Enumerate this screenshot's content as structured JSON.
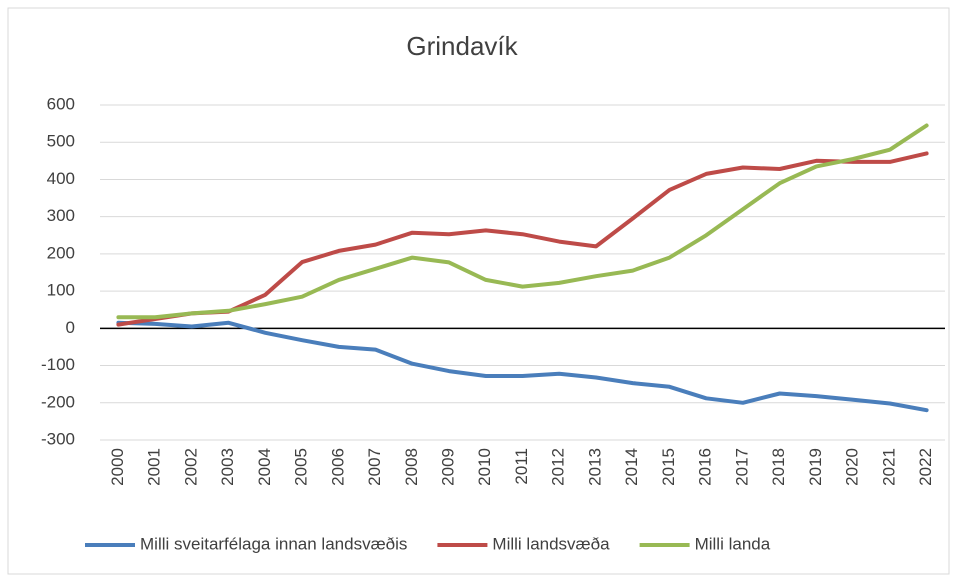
{
  "chart_data": {
    "type": "line",
    "title": "Grindavík",
    "categories": [
      "2000",
      "2001",
      "2002",
      "2003",
      "2004",
      "2005",
      "2006",
      "2007",
      "2008",
      "2009",
      "2010",
      "2011",
      "2012",
      "2013",
      "2014",
      "2015",
      "2016",
      "2017",
      "2018",
      "2019",
      "2020",
      "2021",
      "2022"
    ],
    "series": [
      {
        "name": "Milli sveitarfélaga innan landsvæðis",
        "color": "#4a7ebb",
        "values": [
          15,
          12,
          5,
          15,
          -12,
          -32,
          -50,
          -57,
          -95,
          -115,
          -128,
          -128,
          -122,
          -132,
          -147,
          -157,
          -188,
          -200,
          -175,
          -182,
          -192,
          -202,
          -220
        ]
      },
      {
        "name": "Milli landsvæða",
        "color": "#be4b48",
        "values": [
          10,
          25,
          40,
          45,
          90,
          178,
          208,
          225,
          257,
          253,
          263,
          253,
          233,
          220,
          295,
          372,
          415,
          432,
          428,
          450,
          447,
          447,
          470
        ]
      },
      {
        "name": "Milli landa",
        "color": "#98b954",
        "values": [
          30,
          30,
          40,
          47,
          65,
          85,
          130,
          160,
          190,
          177,
          130,
          112,
          122,
          140,
          155,
          190,
          250,
          320,
          390,
          435,
          455,
          480,
          545
        ]
      }
    ],
    "ylim": [
      -300,
      600
    ],
    "yticks": [
      -300,
      -200,
      -100,
      0,
      100,
      200,
      300,
      400,
      500,
      600
    ],
    "grid": true,
    "legend": "bottom"
  }
}
